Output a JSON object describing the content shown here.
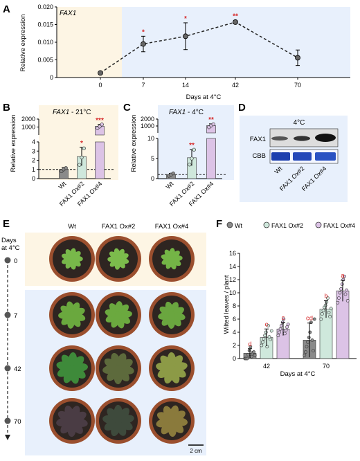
{
  "panels": {
    "A": {
      "label": "A",
      "gene_label": "FAX1",
      "xlabel": "Days at 4°C",
      "ylabel": "Relative expression"
    },
    "B": {
      "label": "B",
      "gene_label": "FAX1",
      "condition": " - 21°C",
      "ylabel": "Relative expression"
    },
    "C": {
      "label": "C",
      "gene_label": "FAX1",
      "condition": " - 4°C",
      "ylabel": "Relative expression"
    },
    "D": {
      "label": "D",
      "temperature": "4°C",
      "rows": [
        "FAX1",
        "CBB"
      ],
      "lanes": [
        "Wt",
        "FAX1 Ox#2",
        "FAX1 Ox#4"
      ]
    },
    "E": {
      "label": "E",
      "columns": [
        "Wt",
        "FAX1 Ox#2",
        "FAX1 Ox#4"
      ],
      "timeline_title_1": "Days",
      "timeline_title_2": "at 4°C",
      "timepoints": [
        "0",
        "7",
        "42",
        "70"
      ],
      "scale_bar": "2 cm"
    },
    "F": {
      "label": "F",
      "ylabel": "Wilted leaves / plant",
      "xlabel": "Days at 4°C"
    }
  },
  "chart_data": [
    {
      "id": "A",
      "type": "line",
      "x": [
        0,
        7,
        14,
        42,
        70
      ],
      "x_tick_labels": [
        "0",
        "7",
        "14",
        "42",
        "70"
      ],
      "y": [
        0.0013,
        0.0095,
        0.0117,
        0.0157,
        0.0056
      ],
      "y_err": [
        0.0002,
        0.0022,
        0.0038,
        0.0005,
        0.0022
      ],
      "significance": [
        "",
        "*",
        "*",
        "**",
        ""
      ],
      "ylim": [
        0,
        0.02
      ],
      "yticks": [
        0,
        0.005,
        0.01,
        0.015,
        0.02
      ],
      "ytick_labels": [
        "0",
        "0.005",
        "0.010",
        "0.015",
        "0.020"
      ],
      "xlabel": "Days at 4°C",
      "ylabel": "Relative expression",
      "colors": {
        "cold": "#e8f0fc",
        "warm": "#fdf5e4",
        "line": "#222222"
      }
    },
    {
      "id": "B",
      "type": "bar",
      "categories": [
        "Wt",
        "FAX1 Ox#2",
        "FAX1 Ox#4"
      ],
      "values": [
        1.0,
        2.4,
        1100
      ],
      "errors": [
        0.2,
        1.0,
        220
      ],
      "points": [
        [
          0.8,
          1.0,
          1.15
        ],
        [
          1.5,
          2.3,
          3.3
        ],
        [
          860,
          1060,
          1320
        ]
      ],
      "significance": [
        "",
        "*",
        "***"
      ],
      "y_break": {
        "lower": [
          0,
          4
        ],
        "upper": [
          0,
          2000
        ]
      },
      "yticks_lower": [
        "0",
        "1",
        "2",
        "3",
        "4"
      ],
      "yticks_upper": [
        "1000",
        "2000"
      ],
      "reference_line": 1,
      "ylabel": "Relative expression",
      "colors": [
        "#8a8a8a",
        "#cfe8dc",
        "#dcc3e6"
      ]
    },
    {
      "id": "C",
      "type": "bar",
      "categories": [
        "Wt",
        "FAX1 Ox#2",
        "FAX1 Ox#4"
      ],
      "values": [
        1.0,
        5.2,
        1050
      ],
      "errors": [
        0.3,
        2.0,
        260
      ],
      "points": [
        [
          0.7,
          1.0,
          1.3
        ],
        [
          3.5,
          5.0,
          7.2
        ],
        [
          820,
          1080,
          1250
        ]
      ],
      "significance": [
        "",
        "**",
        "**"
      ],
      "y_break": {
        "lower": [
          0,
          10
        ],
        "upper": [
          0,
          2000
        ]
      },
      "yticks_lower": [
        "0",
        "5",
        "10"
      ],
      "yticks_upper": [
        "1000",
        "2000"
      ],
      "reference_line": 1,
      "ylabel": "Relative expression",
      "colors": [
        "#8a8a8a",
        "#cfe8dc",
        "#dcc3e6"
      ]
    },
    {
      "id": "F",
      "type": "bar",
      "categories": [
        "42",
        "70"
      ],
      "series": [
        {
          "name": "Wt",
          "values": [
            0.8,
            2.8
          ],
          "errors": [
            0.7,
            2.6
          ],
          "letters": [
            "d",
            "cd"
          ],
          "points": [
            [
              0,
              0,
              0,
              0.6,
              1.2,
              1.8,
              0.3,
              0.9,
              1.0,
              0.5
            ],
            [
              0.5,
              1.0,
              1.8,
              2.5,
              3.2,
              4.0,
              5.5,
              2.8,
              1.2,
              6.0
            ]
          ]
        },
        {
          "name": "FAX1 Ox#2",
          "values": [
            3.2,
            7.5
          ],
          "errors": [
            1.3,
            1.3
          ],
          "letters": [
            "c",
            "b"
          ],
          "points": [
            [
              2.0,
              2.5,
              3.0,
              3.5,
              4.0,
              1.8,
              5.0,
              3.3,
              2.9,
              4.2
            ],
            [
              6.0,
              6.8,
              7.3,
              7.8,
              8.1,
              8.6,
              9.2,
              7.0,
              6.4,
              7.6
            ]
          ]
        },
        {
          "name": "FAX1 Ox#4",
          "values": [
            4.5,
            10.3
          ],
          "errors": [
            1.0,
            1.6
          ],
          "letters": [
            "c",
            "a"
          ],
          "points": [
            [
              3.5,
              4.0,
              4.5,
              5.0,
              5.5,
              6.0,
              3.8,
              4.3,
              4.8,
              5.2
            ],
            [
              8.5,
              9.2,
              10.0,
              10.6,
              11.3,
              12.0,
              12.5,
              9.8,
              10.4,
              8.8
            ]
          ]
        }
      ],
      "ylim": [
        0,
        16
      ],
      "yticks": [
        "0",
        "2",
        "4",
        "6",
        "8",
        "10",
        "12",
        "14",
        "16"
      ],
      "xlabel": "Days at 4°C",
      "ylabel": "Wilted leaves / plant",
      "legend_position": "top",
      "colors": [
        "#8a8a8a",
        "#cfe8dc",
        "#dcc3e6"
      ]
    }
  ]
}
